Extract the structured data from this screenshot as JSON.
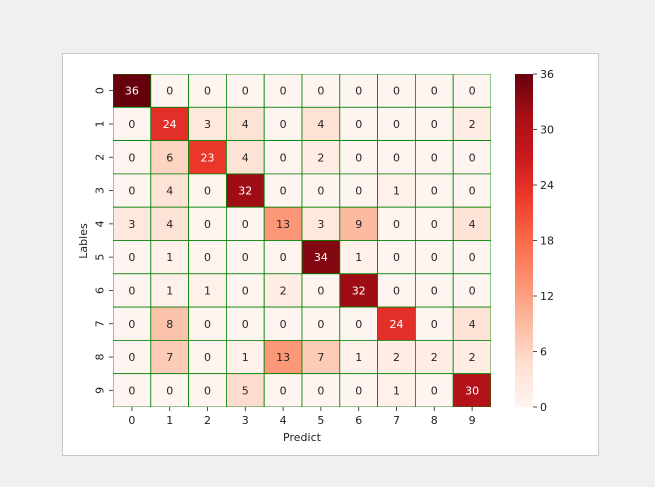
{
  "chart_data": {
    "type": "heatmap",
    "title": "",
    "xlabel": "Predict",
    "ylabel": "Lables",
    "x_ticks": [
      "0",
      "1",
      "2",
      "3",
      "4",
      "5",
      "6",
      "7",
      "8",
      "9"
    ],
    "y_ticks": [
      "0",
      "1",
      "2",
      "3",
      "4",
      "5",
      "6",
      "7",
      "8",
      "9"
    ],
    "matrix": [
      [
        36,
        0,
        0,
        0,
        0,
        0,
        0,
        0,
        0,
        0
      ],
      [
        0,
        24,
        3,
        4,
        0,
        4,
        0,
        0,
        0,
        2
      ],
      [
        0,
        6,
        23,
        4,
        0,
        2,
        0,
        0,
        0,
        0
      ],
      [
        0,
        4,
        0,
        32,
        0,
        0,
        0,
        1,
        0,
        0
      ],
      [
        3,
        4,
        0,
        0,
        13,
        3,
        9,
        0,
        0,
        4
      ],
      [
        0,
        1,
        0,
        0,
        0,
        34,
        1,
        0,
        0,
        0
      ],
      [
        0,
        1,
        1,
        0,
        2,
        0,
        32,
        0,
        0,
        0
      ],
      [
        0,
        8,
        0,
        0,
        0,
        0,
        0,
        24,
        0,
        4
      ],
      [
        0,
        7,
        0,
        1,
        13,
        7,
        1,
        2,
        2,
        2
      ],
      [
        0,
        0,
        0,
        5,
        0,
        0,
        0,
        1,
        0,
        30
      ]
    ],
    "colormap": "Reds",
    "colorbar": {
      "ticks": [
        "0",
        "6",
        "12",
        "18",
        "24",
        "30",
        "36"
      ],
      "range": [
        0,
        36
      ]
    },
    "grid": true,
    "grid_color": "#008000",
    "legend": "colorbar-right"
  }
}
